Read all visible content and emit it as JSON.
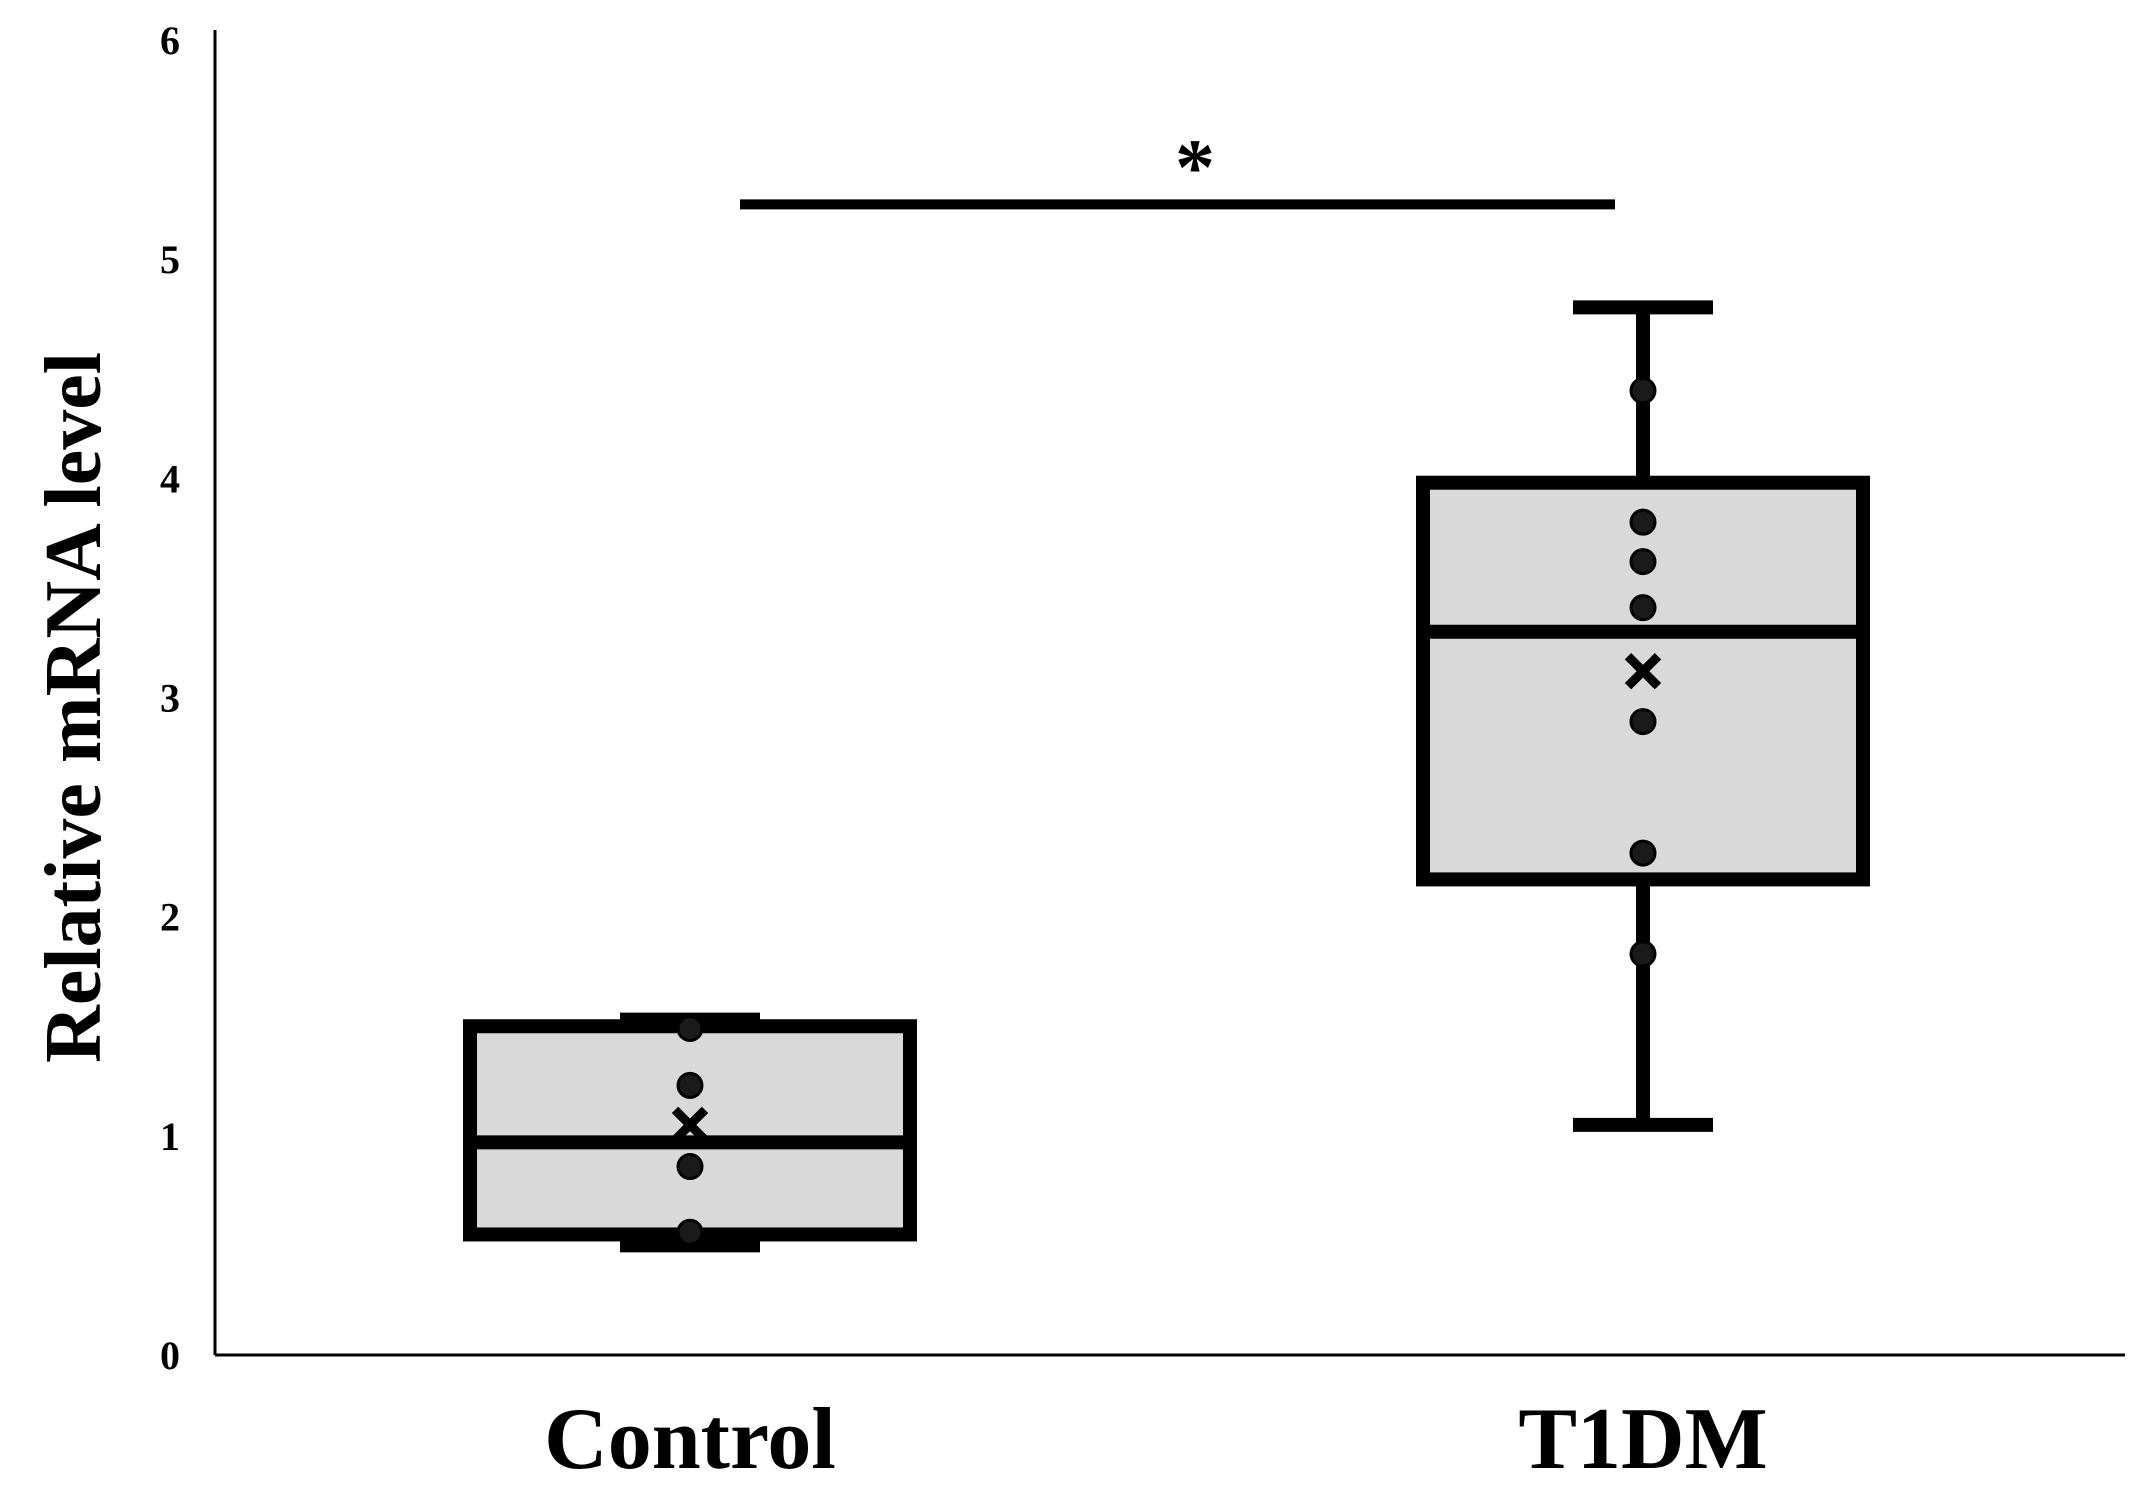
{
  "chart_data": {
    "type": "box",
    "ylabel": "Relative mRNA level",
    "ylim": [
      0,
      6
    ],
    "yticks": [
      "0",
      "1",
      "2",
      "3",
      "4",
      "5",
      "6"
    ],
    "grid": false,
    "categories": [
      "Control",
      "T1DM"
    ],
    "boxes": [
      {
        "name": "Control",
        "min": 0.5,
        "q1": 0.55,
        "median": 0.97,
        "q3": 1.5,
        "max": 1.53,
        "mean": 1.05,
        "points": [
          1.49,
          1.23,
          0.86,
          0.56
        ]
      },
      {
        "name": "T1DM",
        "min": 1.05,
        "q1": 2.17,
        "median": 3.3,
        "q3": 3.98,
        "max": 4.78,
        "mean": 3.12,
        "points": [
          4.4,
          3.8,
          3.62,
          3.41,
          2.89,
          2.29,
          1.83
        ]
      }
    ],
    "box_fill": "#d9d9d9",
    "stroke_color": "#000000",
    "significance": {
      "between": [
        "Control",
        "T1DM"
      ],
      "label": "*",
      "y": 5.25
    }
  }
}
